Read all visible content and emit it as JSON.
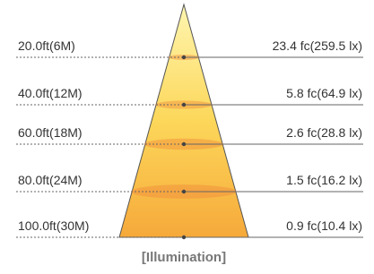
{
  "rows": [
    {
      "distance": "20.0ft(6M)",
      "illuminance": "23.4 fc(259.5 lx)"
    },
    {
      "distance": "40.0ft(12M)",
      "illuminance": "5.8 fc(64.9 lx)"
    },
    {
      "distance": "60.0ft(18M)",
      "illuminance": "2.6 fc(28.8 lx)"
    },
    {
      "distance": "80.0ft(24M)",
      "illuminance": "1.5 fc(16.2 lx)"
    },
    {
      "distance": "100.0ft(30M)",
      "illuminance": "0.9 fc(10.4 lx)"
    }
  ],
  "caption": "[Illumination]"
}
